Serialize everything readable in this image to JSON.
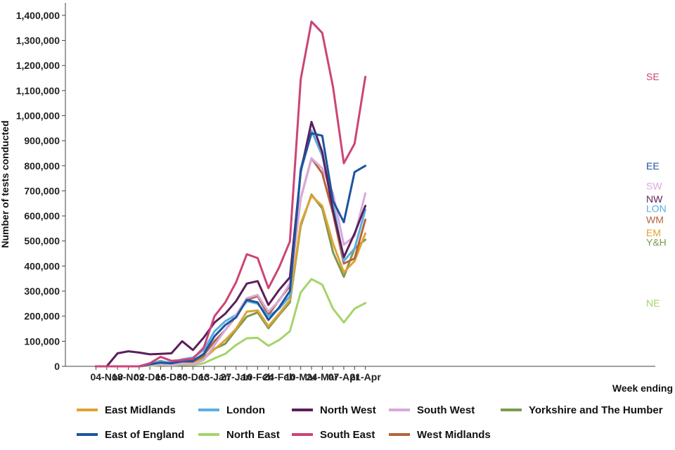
{
  "chart_data": {
    "type": "line",
    "ylabel": "Number of tests conducted",
    "xlabel": "Week ending",
    "ylim": [
      0,
      1450000
    ],
    "yticks": [
      0,
      100000,
      200000,
      300000,
      400000,
      500000,
      600000,
      700000,
      800000,
      900000,
      1000000,
      1100000,
      1200000,
      1300000,
      1400000
    ],
    "ytick_labels": [
      "0",
      "100,000",
      "200,000",
      "300,000",
      "400,000",
      "500,000",
      "600,000",
      "700,000",
      "800,000",
      "900,000",
      "1,000,000",
      "1,100,000",
      "1,200,000",
      "1,300,000",
      "1,400,000"
    ],
    "x": [
      "28-Oct",
      "04-Nov",
      "11-Nov",
      "18-Nov",
      "25-Nov",
      "02-Dec",
      "09-Dec",
      "16-Dec",
      "23-Dec",
      "30-Dec",
      "06-Jan",
      "13-Jan",
      "20-Jan",
      "27-Jan",
      "03-Feb",
      "10-Feb",
      "17-Feb",
      "24-Feb",
      "03-Mar",
      "10-Mar",
      "17-Mar",
      "24-Mar",
      "31-Mar",
      "07-Apr",
      "14-Apr",
      "21-Apr"
    ],
    "x_tick_labels": [
      "04-Nov",
      "18-Nov",
      "02-Dec",
      "16-Dec",
      "30-Dec",
      "13-Jan",
      "27-Jan",
      "10-Feb",
      "24-Feb",
      "10-Mar",
      "24-Mar",
      "07-Apr",
      "21-Apr"
    ],
    "grid": false,
    "legend_position": "bottom",
    "series": [
      {
        "name": "East Midlands",
        "label": "EM",
        "color": "#E0A232",
        "values": [
          0,
          0,
          0,
          0,
          0,
          6000,
          10000,
          8000,
          14000,
          12000,
          30000,
          68000,
          105000,
          150000,
          218000,
          223000,
          160000,
          210000,
          265000,
          570000,
          680000,
          640000,
          490000,
          375000,
          420000,
          530000
        ]
      },
      {
        "name": "East of England",
        "label": "EE",
        "color": "#1C54A0",
        "values": [
          0,
          0,
          0,
          0,
          0,
          8000,
          15000,
          12000,
          20000,
          22000,
          50000,
          120000,
          165000,
          195000,
          265000,
          255000,
          185000,
          235000,
          300000,
          780000,
          930000,
          920000,
          660000,
          575000,
          775000,
          800000
        ]
      },
      {
        "name": "London",
        "label": "LON",
        "color": "#5BAEE0",
        "values": [
          0,
          0,
          0,
          0,
          0,
          10000,
          20000,
          15000,
          28000,
          35000,
          65000,
          140000,
          180000,
          205000,
          260000,
          250000,
          200000,
          230000,
          280000,
          790000,
          940000,
          840000,
          650000,
          420000,
          470000,
          625000
        ]
      },
      {
        "name": "North East",
        "label": "NE",
        "color": "#A5D46A",
        "values": [
          0,
          0,
          0,
          0,
          0,
          2000,
          5000,
          4000,
          6000,
          5000,
          12000,
          32000,
          50000,
          85000,
          112000,
          114000,
          82000,
          105000,
          140000,
          295000,
          348000,
          326000,
          230000,
          175000,
          230000,
          252000
        ]
      },
      {
        "name": "North West",
        "label": "NW",
        "color": "#5C1E5A",
        "values": [
          0,
          0,
          52000,
          60000,
          55000,
          48000,
          50000,
          52000,
          100000,
          65000,
          115000,
          175000,
          210000,
          260000,
          330000,
          340000,
          245000,
          305000,
          355000,
          775000,
          975000,
          855000,
          620000,
          435000,
          530000,
          640000
        ]
      },
      {
        "name": "South East",
        "label": "SE",
        "color": "#CC4477",
        "values": [
          0,
          0,
          0,
          0,
          0,
          12000,
          38000,
          22000,
          25000,
          30000,
          75000,
          200000,
          255000,
          335000,
          447000,
          432000,
          312000,
          395000,
          498000,
          1145000,
          1375000,
          1330000,
          1115000,
          810000,
          888000,
          1155000
        ]
      },
      {
        "name": "South West",
        "label": "SW",
        "color": "#D8A8DC",
        "values": [
          0,
          0,
          0,
          0,
          0,
          5000,
          8000,
          6000,
          10000,
          9000,
          25000,
          85000,
          145000,
          205000,
          272000,
          285000,
          218000,
          262000,
          330000,
          670000,
          830000,
          790000,
          690000,
          485000,
          520000,
          690000
        ]
      },
      {
        "name": "West Midlands",
        "label": "WM",
        "color": "#B5643A",
        "values": [
          0,
          0,
          0,
          0,
          0,
          8000,
          15000,
          10000,
          20000,
          18000,
          45000,
          100000,
          145000,
          200000,
          265000,
          280000,
          205000,
          265000,
          320000,
          670000,
          830000,
          770000,
          610000,
          410000,
          430000,
          585000
        ]
      },
      {
        "name": "Yorkshire and The Humber",
        "label": "Y&H",
        "color": "#7A9A50",
        "values": [
          0,
          0,
          0,
          0,
          0,
          10000,
          22000,
          12000,
          16000,
          14000,
          35000,
          70000,
          90000,
          145000,
          198000,
          215000,
          152000,
          205000,
          255000,
          560000,
          685000,
          630000,
          455000,
          357000,
          470000,
          505000
        ]
      }
    ],
    "legend_order": [
      "East Midlands",
      "London",
      "North West",
      "South West",
      "Yorkshire and The Humber",
      "East of England",
      "North East",
      "South East",
      "West Midlands"
    ],
    "end_labels": [
      {
        "label": "SE",
        "y": 1155000,
        "color": "#CC4477"
      },
      {
        "label": "EE",
        "y": 800000,
        "color": "#1C54A0"
      },
      {
        "label": "SW",
        "y": 720000,
        "color": "#D8A8DC"
      },
      {
        "label": "NW",
        "y": 668000,
        "color": "#5C1E5A"
      },
      {
        "label": "LON",
        "y": 630000,
        "color": "#5BAEE0"
      },
      {
        "label": "WM",
        "y": 585000,
        "color": "#B5643A"
      },
      {
        "label": "EM",
        "y": 533000,
        "color": "#E0A232"
      },
      {
        "label": "Y&H",
        "y": 495000,
        "color": "#7A9A50"
      },
      {
        "label": "NE",
        "y": 252000,
        "color": "#A5D46A"
      }
    ]
  }
}
